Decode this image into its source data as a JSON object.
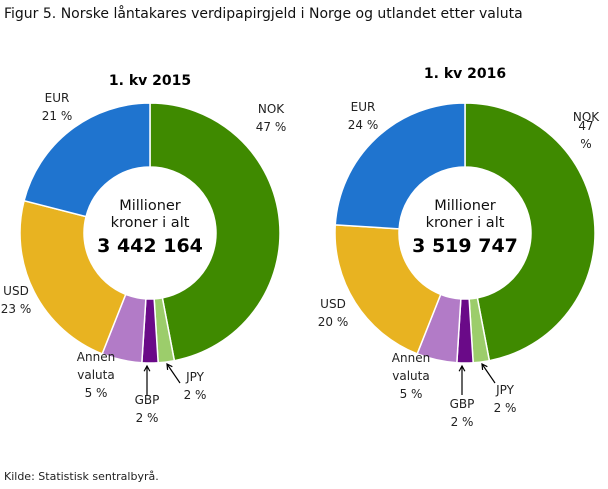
{
  "title": "Figur 5. Norske låntakares verdipapirgjeld  i Norge og utlandet etter valuta",
  "source": "Kilde: Statistisk sentralbyrå.",
  "chart_data": [
    {
      "type": "pie",
      "title": "1. kv 2015",
      "center_text": "Millioner kroner i alt",
      "total": "3 442 164",
      "categories": [
        "NOK",
        "JPY",
        "GBP",
        "Annen valuta",
        "USD",
        "EUR"
      ],
      "values": [
        47,
        2,
        2,
        5,
        23,
        21
      ],
      "value_labels": [
        "47 %",
        "2 %",
        "2 %",
        "5 %",
        "23 %",
        "21 %"
      ],
      "colors": [
        "#3f8a00",
        "#9ccd6b",
        "#6a0a88",
        "#b27bc7",
        "#e8b321",
        "#1f74cf"
      ]
    },
    {
      "type": "pie",
      "title": "1. kv 2016",
      "center_text": "Millioner kroner i alt",
      "total": "3 519 747",
      "categories": [
        "NOK",
        "JPY",
        "GBP",
        "Annen valuta",
        "USD",
        "EUR"
      ],
      "values": [
        47,
        2,
        2,
        5,
        20,
        24
      ],
      "value_labels": [
        "47 %",
        "2 %",
        "2 %",
        "5 %",
        "20 %",
        "24 %"
      ],
      "colors": [
        "#3f8a00",
        "#9ccd6b",
        "#6a0a88",
        "#b27bc7",
        "#e8b321",
        "#1f74cf"
      ]
    }
  ]
}
